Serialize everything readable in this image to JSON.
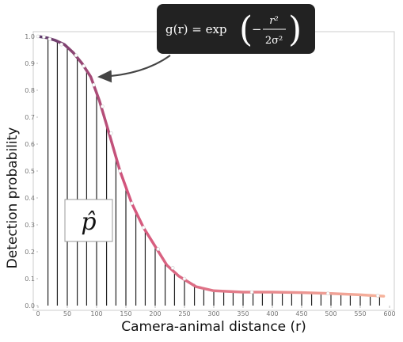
{
  "chart_data": {
    "type": "line",
    "x_label": "Camera-animal distance (r)",
    "y_label": "Detection probability",
    "formula": {
      "lhs": "g(r) = exp",
      "sign": "−",
      "numerator": "r²",
      "denominator": "2σ²"
    },
    "inset_label": "p̂",
    "xlim": [
      0,
      600
    ],
    "xticks": [
      0,
      50,
      100,
      150,
      200,
      250,
      300,
      350,
      400,
      450,
      500,
      550,
      600
    ],
    "ylim": [
      0,
      1
    ],
    "yticks": [
      {
        "value": 0,
        "label": "0.0"
      },
      {
        "value": 0.1,
        "label": "0.1"
      },
      {
        "value": 0.2,
        "label": "0.2"
      },
      {
        "value": 0.3,
        "label": "0.3"
      },
      {
        "value": 0.4,
        "label": "0.4"
      },
      {
        "value": 0.5,
        "label": "0.5"
      },
      {
        "value": 0.6,
        "label": "0.6"
      },
      {
        "value": 0.7,
        "label": "0.7"
      },
      {
        "value": 0.8,
        "label": "0.8"
      },
      {
        "value": 0.9,
        "label": "0.9"
      },
      {
        "value": 1,
        "label": "1.0"
      }
    ],
    "detections": {
      "color": "#222222",
      "x": [
        17,
        33,
        50,
        67,
        83,
        100,
        117,
        133,
        150,
        167,
        183,
        200,
        217,
        233,
        250,
        267,
        283,
        300,
        317,
        333,
        350,
        367,
        383,
        400,
        417,
        433,
        450,
        467,
        483,
        500,
        517,
        533,
        550,
        567,
        583
      ],
      "values": [
        0.99,
        0.98,
        0.96,
        0.92,
        0.87,
        0.79,
        0.67,
        0.55,
        0.44,
        0.35,
        0.28,
        0.22,
        0.16,
        0.12,
        0.1,
        0.08,
        0.065,
        0.06,
        0.055,
        0.05,
        0.05,
        0.05,
        0.05,
        0.05,
        0.05,
        0.048,
        0.047,
        0.046,
        0.045,
        0.044,
        0.043,
        0.042,
        0.04,
        0.039,
        0.038
      ]
    },
    "curve": {
      "colors": [
        "#5b3a6c",
        "#d4557d",
        "#f7b59c"
      ],
      "x": [
        0,
        15,
        30,
        45,
        60,
        75,
        90,
        105,
        120,
        140,
        160,
        180,
        200,
        220,
        240,
        270,
        300,
        350,
        400,
        450,
        500,
        550,
        590
      ],
      "values": [
        1,
        0.995,
        0.985,
        0.97,
        0.94,
        0.9,
        0.85,
        0.76,
        0.65,
        0.5,
        0.38,
        0.29,
        0.22,
        0.15,
        0.11,
        0.07,
        0.055,
        0.05,
        0.05,
        0.048,
        0.045,
        0.04,
        0.035
      ]
    },
    "points": {
      "x": [
        0,
        10,
        20,
        40,
        65,
        78,
        95,
        110,
        125,
        140,
        160,
        180,
        205,
        230,
        250,
        365,
        495,
        580
      ],
      "values": [
        1,
        0.998,
        0.99,
        0.97,
        0.93,
        0.89,
        0.82,
        0.74,
        0.64,
        0.5,
        0.38,
        0.29,
        0.21,
        0.14,
        0.1,
        0.05,
        0.045,
        0.037
      ]
    }
  }
}
